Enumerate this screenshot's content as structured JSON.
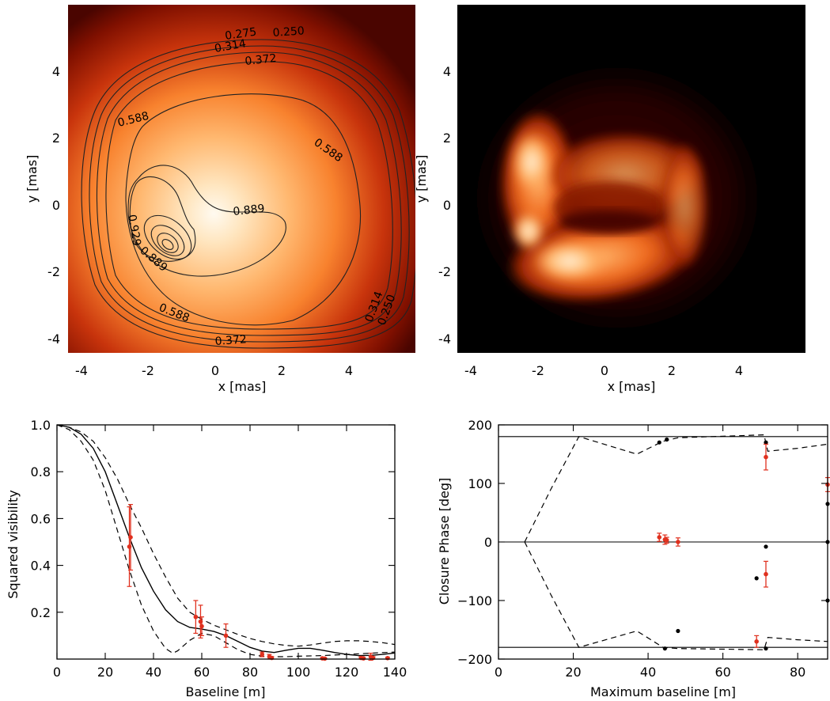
{
  "images": [
    {
      "xlabel": "x [mas]",
      "ylabel": "y [mas]",
      "xlim": [
        -4.4,
        6.0
      ],
      "ylim": [
        -4.4,
        6.0
      ],
      "x_ticks": [
        "-4",
        "-2",
        "0",
        "2",
        "4"
      ],
      "y_ticks": [
        "4",
        "2",
        "0",
        "-2",
        "-4"
      ],
      "contour_labels": [
        "0.275",
        "0.250",
        "0.314",
        "0.372",
        "0.588",
        "0.588",
        "0.889",
        "0.929",
        "0.889",
        "0.588",
        "0.372",
        "0.314",
        "0.250"
      ]
    },
    {
      "xlabel": "x [mas]",
      "ylabel": "y [mas]",
      "xlim": [
        -4.4,
        6.0
      ],
      "ylim": [
        -4.4,
        6.0
      ],
      "x_ticks": [
        "-4",
        "-2",
        "0",
        "2",
        "4"
      ],
      "y_ticks": [
        "4",
        "2",
        "0",
        "-2",
        "-4"
      ]
    }
  ],
  "chart_data": [
    {
      "type": "scatter",
      "xlabel": "Baseline [m]",
      "ylabel": "Squared visibility",
      "xlim": [
        0,
        140
      ],
      "ylim": [
        0,
        1.0
      ],
      "x_ticks": [
        "0",
        "20",
        "40",
        "60",
        "80",
        "100",
        "120",
        "140"
      ],
      "y_ticks": [
        "1.0",
        "0.8",
        "0.6",
        "0.4",
        "0.2"
      ],
      "observations": [
        {
          "x": 30,
          "y": 0.48,
          "err": 0.17
        },
        {
          "x": 30.5,
          "y": 0.52,
          "err": 0.14
        },
        {
          "x": 57.5,
          "y": 0.18,
          "err": 0.07
        },
        {
          "x": 59.5,
          "y": 0.16,
          "err": 0.07
        },
        {
          "x": 60,
          "y": 0.14,
          "err": 0.04
        },
        {
          "x": 70,
          "y": 0.1,
          "err": 0.05
        },
        {
          "x": 85,
          "y": 0.02,
          "err": 0.01
        },
        {
          "x": 88,
          "y": 0.01,
          "err": 0.01
        },
        {
          "x": 89,
          "y": 0.005,
          "err": 0.005
        },
        {
          "x": 110,
          "y": 0.003,
          "err": 0.003
        },
        {
          "x": 111,
          "y": 0.002,
          "err": 0.002
        },
        {
          "x": 126,
          "y": 0.005,
          "err": 0.005
        },
        {
          "x": 127,
          "y": 0.003,
          "err": 0.003
        },
        {
          "x": 130,
          "y": 0.01,
          "err": 0.015
        },
        {
          "x": 131,
          "y": 0.005,
          "err": 0.005
        },
        {
          "x": 137,
          "y": 0.004,
          "err": 0.004
        }
      ],
      "model": [
        [
          0,
          1.0
        ],
        [
          5,
          0.99
        ],
        [
          10,
          0.96
        ],
        [
          15,
          0.9
        ],
        [
          20,
          0.8
        ],
        [
          25,
          0.66
        ],
        [
          30,
          0.52
        ],
        [
          35,
          0.39
        ],
        [
          40,
          0.29
        ],
        [
          45,
          0.21
        ],
        [
          50,
          0.16
        ],
        [
          55,
          0.135
        ],
        [
          60,
          0.128
        ],
        [
          65,
          0.118
        ],
        [
          70,
          0.1
        ],
        [
          75,
          0.075
        ],
        [
          80,
          0.05
        ],
        [
          85,
          0.034
        ],
        [
          90,
          0.028
        ],
        [
          95,
          0.038
        ],
        [
          100,
          0.046
        ],
        [
          105,
          0.046
        ],
        [
          110,
          0.038
        ],
        [
          115,
          0.028
        ],
        [
          120,
          0.02
        ],
        [
          125,
          0.015
        ],
        [
          130,
          0.016
        ],
        [
          135,
          0.02
        ],
        [
          140,
          0.026
        ]
      ],
      "model_upper": [
        [
          0,
          1.0
        ],
        [
          5,
          0.99
        ],
        [
          10,
          0.97
        ],
        [
          15,
          0.93
        ],
        [
          20,
          0.86
        ],
        [
          25,
          0.77
        ],
        [
          30,
          0.66
        ],
        [
          35,
          0.56
        ],
        [
          40,
          0.45
        ],
        [
          45,
          0.35
        ],
        [
          50,
          0.26
        ],
        [
          55,
          0.2
        ],
        [
          60,
          0.17
        ],
        [
          65,
          0.145
        ],
        [
          70,
          0.125
        ],
        [
          75,
          0.105
        ],
        [
          80,
          0.088
        ],
        [
          85,
          0.075
        ],
        [
          90,
          0.065
        ],
        [
          95,
          0.058
        ],
        [
          100,
          0.055
        ],
        [
          105,
          0.06
        ],
        [
          110,
          0.068
        ],
        [
          115,
          0.075
        ],
        [
          120,
          0.078
        ],
        [
          125,
          0.078
        ],
        [
          130,
          0.075
        ],
        [
          135,
          0.07
        ],
        [
          140,
          0.062
        ]
      ],
      "model_lower": [
        [
          0,
          1.0
        ],
        [
          5,
          0.98
        ],
        [
          10,
          0.93
        ],
        [
          15,
          0.85
        ],
        [
          20,
          0.72
        ],
        [
          25,
          0.55
        ],
        [
          30,
          0.38
        ],
        [
          35,
          0.23
        ],
        [
          40,
          0.12
        ],
        [
          45,
          0.045
        ],
        [
          48,
          0.025
        ],
        [
          50,
          0.035
        ],
        [
          55,
          0.08
        ],
        [
          60,
          0.11
        ],
        [
          65,
          0.1
        ],
        [
          70,
          0.07
        ],
        [
          75,
          0.04
        ],
        [
          80,
          0.02
        ],
        [
          85,
          0.012
        ],
        [
          90,
          0.01
        ],
        [
          95,
          0.01
        ],
        [
          100,
          0.012
        ],
        [
          110,
          0.015
        ],
        [
          120,
          0.02
        ],
        [
          130,
          0.025
        ],
        [
          140,
          0.03
        ]
      ]
    },
    {
      "type": "scatter",
      "xlabel": "Maximum baseline [m]",
      "ylabel": "Closure Phase [deg]",
      "xlim": [
        0,
        88
      ],
      "ylim": [
        -200,
        200
      ],
      "x_ticks": [
        "0",
        "20",
        "40",
        "60",
        "80"
      ],
      "y_ticks": [
        "200",
        "100",
        "0",
        "−100",
        "−200"
      ],
      "hlines": [
        180,
        0,
        -180
      ],
      "observations": [
        {
          "x": 43,
          "y": 8,
          "err": 7
        },
        {
          "x": 44.5,
          "y": 4,
          "err": 8
        },
        {
          "x": 45,
          "y": 3,
          "err": 5
        },
        {
          "x": 48,
          "y": 0,
          "err": 7
        },
        {
          "x": 71.5,
          "y": 145,
          "err": 22
        },
        {
          "x": 71.5,
          "y": -55,
          "err": 22
        },
        {
          "x": 69,
          "y": -170,
          "err": 10
        },
        {
          "x": 88,
          "y": 98,
          "err": 12
        }
      ],
      "model_points": [
        {
          "x": 43,
          "y": 170
        },
        {
          "x": 45,
          "y": 175
        },
        {
          "x": 48,
          "y": -152
        },
        {
          "x": 44.5,
          "y": -182
        },
        {
          "x": 69,
          "y": -62
        },
        {
          "x": 71.5,
          "y": 170
        },
        {
          "x": 71.5,
          "y": -8
        },
        {
          "x": 71.5,
          "y": -182
        },
        {
          "x": 88,
          "y": 65
        },
        {
          "x": 88,
          "y": 0
        },
        {
          "x": 88,
          "y": -100
        }
      ],
      "model_upper": [
        [
          7,
          0
        ],
        [
          14,
          90
        ],
        [
          21.5,
          180
        ],
        [
          37,
          150
        ],
        [
          44,
          172
        ],
        [
          48,
          178
        ],
        [
          71,
          183
        ],
        [
          72,
          155
        ],
        [
          80,
          160
        ],
        [
          88,
          167
        ]
      ],
      "model_lower": [
        [
          7,
          0
        ],
        [
          14,
          -90
        ],
        [
          21.5,
          -180
        ],
        [
          37,
          -152
        ],
        [
          44,
          -180
        ],
        [
          48,
          -182
        ],
        [
          71,
          -184
        ],
        [
          72,
          -163
        ],
        [
          80,
          -167
        ],
        [
          88,
          -170
        ]
      ]
    }
  ]
}
